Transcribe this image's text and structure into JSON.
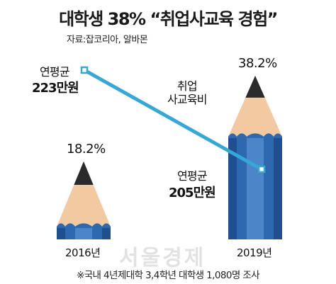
{
  "title": "대학생 38% “취업사교육 경험”",
  "source": "자료:잡코리아, 알바몬",
  "note": "※국내 4년제대학 3,4학년 대학생 1,080명 조사",
  "watermark": "서울경제",
  "colors": {
    "pencil_body": "#2e68b0",
    "pencil_face_dark": "#1f4f8f",
    "pencil_face_light": "#4d86c8",
    "pencil_wood": "#f2c9a0",
    "pencil_tip": "#2a2a2a",
    "line": "#35a8d8"
  },
  "chart_data": [
    {
      "type": "bar",
      "categories": [
        "2016년",
        "2019년"
      ],
      "values": [
        18.2,
        38.2
      ],
      "value_labels": [
        "18.2%",
        "38.2%"
      ]
    },
    {
      "type": "line",
      "series": [
        {
          "name": "취업 사교육비",
          "x": [
            "2016년",
            "2019년"
          ],
          "values": [
            223,
            205
          ],
          "label_prefix": [
            "연평균",
            "연평균"
          ],
          "label_value": [
            "223만원",
            "205만원"
          ]
        }
      ]
    }
  ]
}
